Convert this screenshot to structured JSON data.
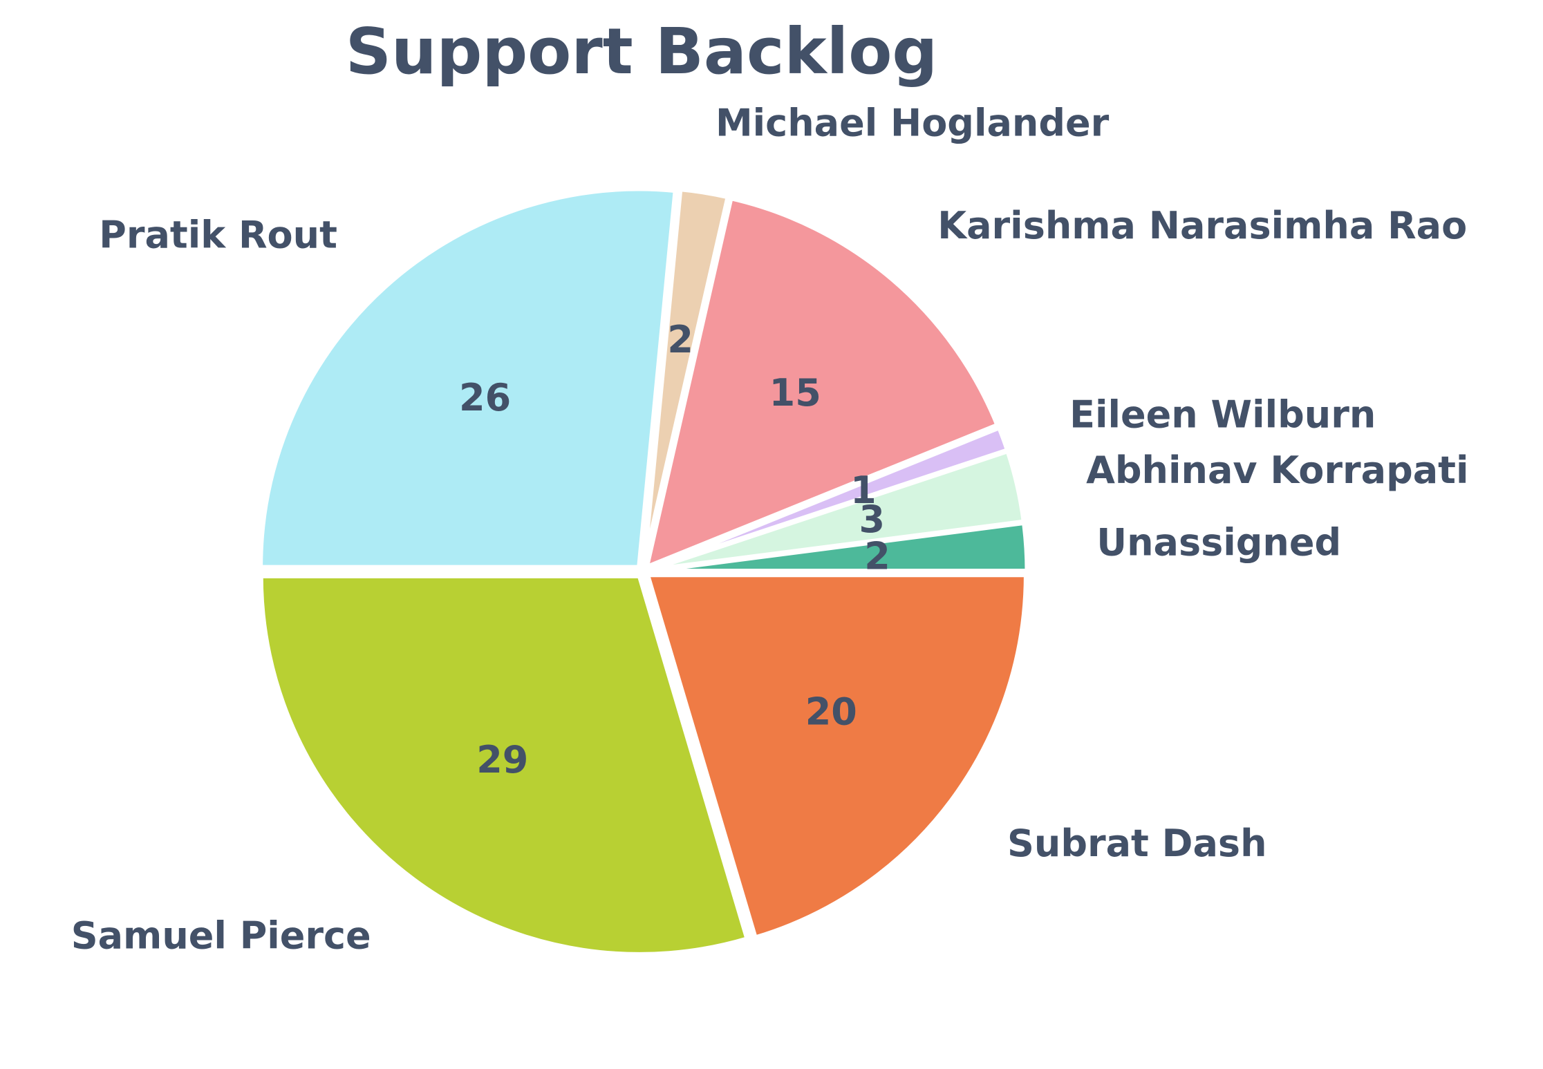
{
  "chart_data": {
    "type": "pie",
    "title": "Support Backlog",
    "slices": [
      {
        "label": "Unassigned",
        "value": 2,
        "color": "#4db99a"
      },
      {
        "label": "Abhinav Korrapati",
        "value": 3,
        "color": "#d5f5e0"
      },
      {
        "label": "Eileen Wilburn",
        "value": 1,
        "color": "#d9bff5"
      },
      {
        "label": "Karishma Narasimha Rao",
        "value": 15,
        "color": "#f4979c"
      },
      {
        "label": "Michael Hoglander",
        "value": 2,
        "color": "#ecd0b1"
      },
      {
        "label": "Pratik Rout",
        "value": 26,
        "color": "#aeebf5"
      },
      {
        "label": "Samuel Pierce",
        "value": 29,
        "color": "#b8d033"
      },
      {
        "label": "Subrat Dash",
        "value": 20,
        "color": "#ef7b45"
      }
    ],
    "start_angle_deg": 0,
    "direction": "counterclockwise",
    "slice_edge_color": "#ffffff",
    "text_color": "#435168"
  }
}
